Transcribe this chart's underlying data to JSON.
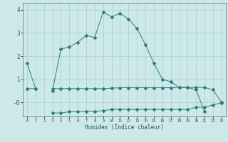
{
  "xlabel": "Humidex (Indice chaleur)",
  "x": [
    0,
    1,
    2,
    3,
    4,
    5,
    6,
    7,
    8,
    9,
    10,
    11,
    12,
    13,
    14,
    15,
    16,
    17,
    18,
    19,
    20,
    21,
    22,
    23
  ],
  "line_max": [
    1.7,
    0.6,
    null,
    0.5,
    2.3,
    2.4,
    2.6,
    2.9,
    2.8,
    3.9,
    3.7,
    3.85,
    3.6,
    3.2,
    2.5,
    1.7,
    1.0,
    0.9,
    0.65,
    0.65,
    0.55,
    -0.4,
    null,
    null
  ],
  "line_mean": [
    0.6,
    0.6,
    null,
    0.6,
    0.6,
    0.6,
    0.6,
    0.6,
    0.6,
    0.6,
    0.62,
    0.64,
    0.64,
    0.64,
    0.64,
    0.64,
    0.64,
    0.64,
    0.65,
    0.65,
    0.65,
    0.65,
    0.55,
    0.0
  ],
  "line_min": [
    null,
    null,
    null,
    -0.45,
    -0.45,
    -0.4,
    -0.4,
    -0.38,
    -0.38,
    -0.35,
    -0.3,
    -0.3,
    -0.3,
    -0.3,
    -0.3,
    -0.3,
    -0.3,
    -0.3,
    -0.3,
    -0.3,
    -0.2,
    -0.2,
    -0.1,
    -0.02
  ],
  "line_color": "#2e7d7d",
  "bg_color": "#cce8e8",
  "grid_color": "#aacece",
  "ylim": [
    -0.6,
    4.3
  ],
  "xlim": [
    -0.5,
    23.5
  ],
  "yticks": [
    -0.0,
    1,
    2,
    3,
    4
  ],
  "ytick_labels": [
    "-0",
    "1",
    "2",
    "3",
    "4"
  ],
  "xticks": [
    0,
    1,
    2,
    3,
    4,
    5,
    6,
    7,
    8,
    9,
    10,
    11,
    12,
    13,
    14,
    15,
    16,
    17,
    18,
    19,
    20,
    21,
    22,
    23
  ]
}
